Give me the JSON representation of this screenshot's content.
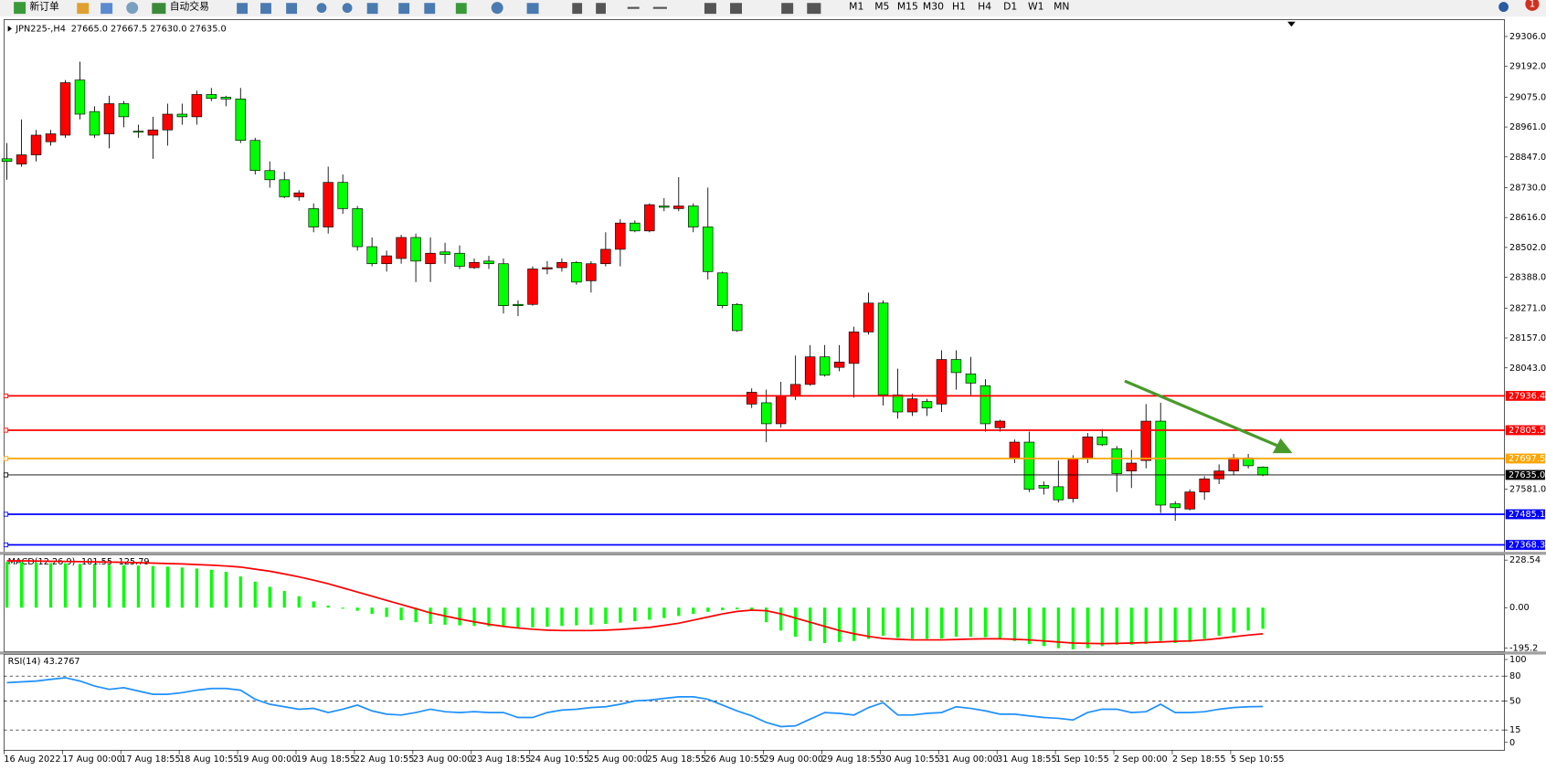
{
  "toolbar": {
    "new_order": "新订单",
    "auto_trading": "自动交易",
    "timeframes": [
      "M1",
      "M5",
      "M15",
      "M30",
      "H1",
      "H4",
      "D1",
      "W1",
      "MN"
    ],
    "notification": "1"
  },
  "chart_data": [
    {
      "type": "candlestick",
      "title": "JPN225-,H4",
      "subtitle": "27665.0 27667.5 27630.0 27635.0",
      "categories": [
        "16 Aug 2022",
        null,
        null,
        null,
        "17 Aug 00:00",
        null,
        null,
        null,
        "17 Aug 18:55",
        null,
        null,
        null,
        "18 Aug 10:55",
        null,
        null,
        null,
        "19 Aug 00:00",
        null,
        null,
        null,
        "19 Aug 18:55",
        null,
        null,
        null,
        "22 Aug 10:55",
        null,
        null,
        null,
        "23 Aug 00:00",
        null,
        null,
        null,
        "23 Aug 18:55",
        null,
        null,
        null,
        "24 Aug 10:55",
        null,
        null,
        null,
        "25 Aug 00:00",
        null,
        null,
        null,
        "25 Aug 18:55",
        null,
        null,
        null,
        "26 Aug 10:55",
        null,
        null,
        null,
        "29 Aug 00:00",
        null,
        null,
        null,
        "29 Aug 18:55",
        null,
        null,
        null,
        "30 Aug 10:55",
        null,
        null,
        null,
        "31 Aug 00:00",
        null,
        null,
        null,
        "31 Aug 18:55",
        null,
        null,
        null,
        "1 Sep 10:55",
        null,
        null,
        null,
        "2 Sep 00:00",
        null,
        null,
        null,
        "2 Sep 18:55",
        null,
        null,
        null,
        "5 Sep 10:55",
        null,
        null
      ],
      "open": [
        28840,
        28820,
        28855,
        28905,
        28930,
        29140,
        29020,
        28935,
        29050,
        28945,
        28930,
        28950,
        29010,
        29000,
        29085,
        29075,
        29068,
        28910,
        28795,
        28760,
        28695,
        28650,
        28580,
        28750,
        28650,
        28505,
        28440,
        28460,
        28540,
        28440,
        28485,
        28480,
        28425,
        28450,
        28440,
        28285,
        28285,
        28420,
        28425,
        28445,
        28375,
        28440,
        28495,
        28595,
        28565,
        28660,
        28650,
        28660,
        28580,
        28405,
        28285,
        27905,
        27910,
        27830,
        27935,
        27980,
        28085,
        28045,
        28060,
        28180,
        28290,
        27940,
        27875,
        27915,
        27905,
        28075,
        28020,
        27975,
        27815,
        27700,
        27760,
        27595,
        27590,
        27545,
        27700,
        27780,
        27735,
        27650,
        27690,
        27840,
        27525,
        27505,
        27570,
        27620,
        27650,
        27700,
        27665.0
      ],
      "high": [
        28900,
        28990,
        28950,
        28950,
        29140,
        29210,
        29040,
        29080,
        29060,
        28970,
        29000,
        29050,
        29050,
        29100,
        29110,
        29080,
        29110,
        28920,
        28830,
        28790,
        28720,
        28670,
        28810,
        28780,
        28660,
        28540,
        28490,
        28550,
        28555,
        28540,
        28520,
        28510,
        28460,
        28470,
        28460,
        28300,
        28430,
        28450,
        28460,
        28450,
        28450,
        28560,
        28610,
        28605,
        28670,
        28690,
        28770,
        28670,
        28730,
        28410,
        28290,
        27965,
        27960,
        27990,
        28090,
        28130,
        28130,
        28130,
        28200,
        28330,
        28300,
        28040,
        27945,
        27925,
        28110,
        28110,
        28085,
        28000,
        27845,
        27770,
        27800,
        27610,
        27690,
        27710,
        27795,
        27810,
        27745,
        27730,
        27905,
        27910,
        27535,
        27580,
        27630,
        27675,
        27715,
        27715,
        27667.5
      ],
      "low": [
        28760,
        28810,
        28830,
        28890,
        28920,
        28990,
        28920,
        28880,
        28960,
        28920,
        28840,
        28890,
        28970,
        28970,
        29060,
        29040,
        28900,
        28780,
        28730,
        28690,
        28680,
        28560,
        28555,
        28630,
        28490,
        28430,
        28410,
        28440,
        28370,
        28370,
        28440,
        28420,
        28420,
        28420,
        28250,
        28240,
        28280,
        28400,
        28410,
        28360,
        28330,
        28430,
        28430,
        28560,
        28560,
        28640,
        28640,
        28560,
        28380,
        28270,
        28180,
        27890,
        27760,
        27815,
        27920,
        27975,
        28010,
        28030,
        27930,
        28170,
        27900,
        27850,
        27860,
        27860,
        27875,
        27960,
        27940,
        27800,
        27800,
        27680,
        27570,
        27560,
        27530,
        27530,
        27680,
        27745,
        27570,
        27585,
        27660,
        27490,
        27460,
        27500,
        27540,
        27600,
        27635,
        27660,
        27630.0
      ],
      "close": [
        28830,
        28855,
        28930,
        28935,
        29130,
        29010,
        28930,
        29050,
        29000,
        28945,
        28950,
        29010,
        29000,
        29085,
        29070,
        29068,
        28910,
        28795,
        28760,
        28695,
        28710,
        28580,
        28750,
        28650,
        28505,
        28440,
        28470,
        28540,
        28450,
        28480,
        28475,
        28430,
        28445,
        28440,
        28280,
        28280,
        28420,
        28425,
        28445,
        28370,
        28440,
        28495,
        28595,
        28565,
        28665,
        28655,
        28660,
        28580,
        28410,
        28280,
        28185,
        27950,
        27830,
        27935,
        27980,
        28085,
        28015,
        28065,
        28180,
        28290,
        27940,
        27875,
        27925,
        27890,
        28075,
        28025,
        27985,
        27830,
        27840,
        27760,
        27580,
        27585,
        27540,
        27695,
        27780,
        27750,
        27640,
        27680,
        27840,
        27520,
        27510,
        27570,
        27620,
        27650,
        27700,
        27670,
        27635.0
      ],
      "up_color": "#ff0000",
      "down_color": "#00ff00",
      "ylim": [
        29362.4,
        27345.6
      ],
      "yticks": [
        {
          "value": 29306,
          "label": "29306.0"
        },
        {
          "value": 29192,
          "label": "29192.0"
        },
        {
          "value": 29075,
          "label": "29075.0"
        },
        {
          "value": 28961,
          "label": "28961.0"
        },
        {
          "value": 28847,
          "label": "28847.0"
        },
        {
          "value": 28730,
          "label": "28730.0"
        },
        {
          "value": 28616,
          "label": "28616.0"
        },
        {
          "value": 28502,
          "label": "28502.0"
        },
        {
          "value": 28388,
          "label": "28388.0"
        },
        {
          "value": 28271,
          "label": "28271.0"
        },
        {
          "value": 28157,
          "label": "28157.0"
        },
        {
          "value": 28043,
          "label": "28043.0"
        },
        {
          "value": 27581,
          "label": "27581.0"
        }
      ],
      "hlines": [
        {
          "value": 27936.4,
          "color": "#ff0000"
        },
        {
          "value": 27805.5,
          "color": "#ff0000"
        },
        {
          "value": 27697.5,
          "color": "#ffa500"
        },
        {
          "value": 27635,
          "label": "27635.0",
          "color": "#000000"
        },
        {
          "value": 27485.1,
          "color": "#0000ff"
        },
        {
          "value": 27368.3,
          "color": "#0000ff"
        }
      ]
    },
    {
      "type": "macd",
      "title": "MACD(12,26,9) -101.55 -125.79",
      "values": [
        220,
        218,
        216,
        214,
        212,
        210,
        208,
        206,
        204,
        202,
        200,
        197,
        193,
        188,
        182,
        172,
        150,
        125,
        100,
        80,
        55,
        30,
        10,
        -5,
        -15,
        -30,
        -45,
        -60,
        -70,
        -78,
        -82,
        -85,
        -88,
        -90,
        -92,
        -95,
        -95,
        -92,
        -88,
        -85,
        -82,
        -78,
        -72,
        -65,
        -58,
        -50,
        -40,
        -30,
        -20,
        -12,
        -8,
        -15,
        -70,
        -110,
        -140,
        -160,
        -170,
        -165,
        -160,
        -150,
        -135,
        -145,
        -150,
        -150,
        -148,
        -140,
        -140,
        -142,
        -150,
        -160,
        -175,
        -185,
        -195,
        -200,
        -195,
        -185,
        -178,
        -178,
        -175,
        -160,
        -170,
        -165,
        -150,
        -135,
        -120,
        -110,
        -101.55
      ],
      "color": "#00ff00",
      "signal": [
        225,
        225,
        224,
        223,
        222,
        221,
        220,
        219,
        218,
        216,
        214,
        212,
        210,
        207,
        204,
        200,
        195,
        185,
        175,
        162,
        148,
        132,
        115,
        95,
        75,
        55,
        35,
        15,
        -5,
        -25,
        -40,
        -55,
        -68,
        -80,
        -90,
        -98,
        -104,
        -108,
        -110,
        -110,
        -110,
        -108,
        -105,
        -100,
        -95,
        -85,
        -75,
        -60,
        -45,
        -30,
        -18,
        -12,
        -15,
        -30,
        -50,
        -70,
        -90,
        -110,
        -125,
        -138,
        -148,
        -152,
        -155,
        -155,
        -155,
        -153,
        -151,
        -150,
        -150,
        -152,
        -155,
        -160,
        -165,
        -170,
        -172,
        -173,
        -172,
        -170,
        -168,
        -165,
        -162,
        -160,
        -155,
        -148,
        -140,
        -132,
        -125.79
      ],
      "signal_color": "#ff0000",
      "ylim": [
        254,
        -211
      ],
      "yticks": [
        228.54,
        {
          "value": 0,
          "label": "0.00"
        },
        -195.2
      ]
    },
    {
      "type": "line",
      "title": "RSI(14) 43.2767",
      "values": [
        72,
        73,
        74,
        76,
        78,
        74,
        68,
        64,
        66,
        62,
        58,
        58,
        60,
        63,
        65,
        65,
        63,
        52,
        46,
        43,
        40,
        41,
        36,
        40,
        45,
        38,
        34,
        33,
        36,
        40,
        37,
        36,
        37,
        36,
        36,
        30,
        30,
        36,
        39,
        40,
        42,
        43,
        46,
        50,
        51,
        53,
        55,
        55,
        52,
        45,
        38,
        32,
        24,
        19,
        20,
        28,
        36,
        35,
        33,
        42,
        48,
        33,
        33,
        35,
        36,
        43,
        41,
        38,
        34,
        34,
        32,
        30,
        29,
        27,
        36,
        40,
        40,
        36,
        37,
        46,
        36,
        36,
        37,
        40,
        42,
        43,
        43.2767
      ],
      "color": "#1e90ff",
      "ylim": [
        106,
        -9.5
      ],
      "yticks": [
        100,
        80,
        50,
        15,
        0
      ]
    }
  ]
}
